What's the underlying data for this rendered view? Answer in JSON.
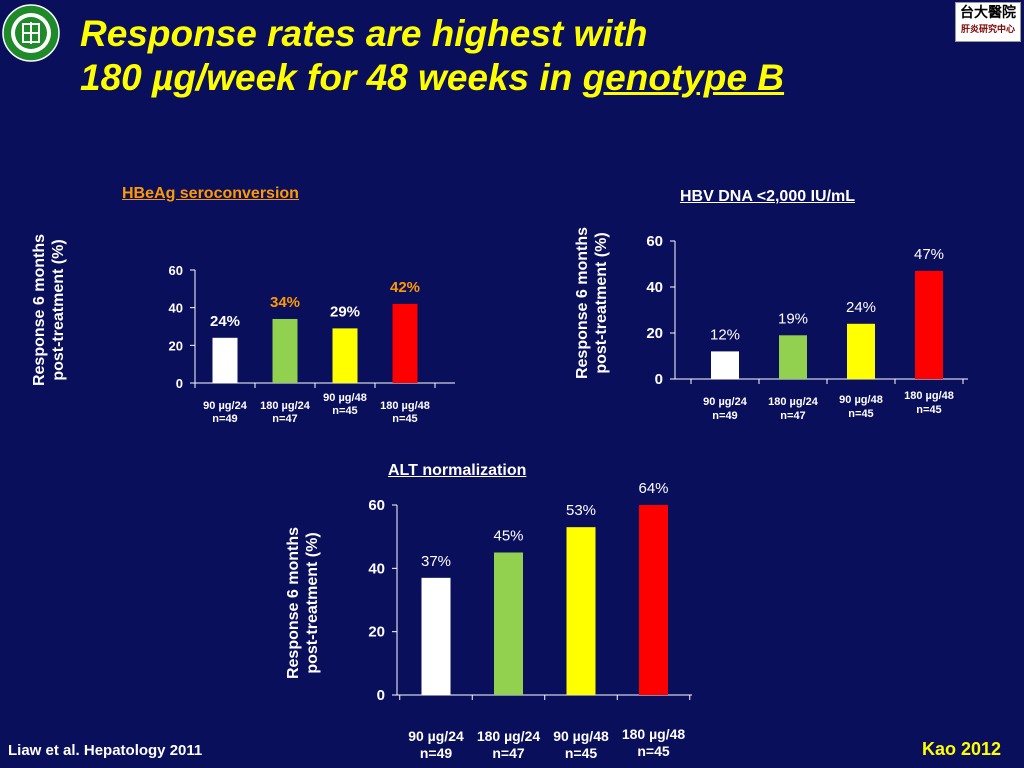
{
  "title": {
    "line1": "Response rates are highest with",
    "line2_prefix": "180 µg/week for 48 weeks in ",
    "line2_underlined": "genotype B"
  },
  "footer": {
    "citation": "Liaw et al. Hepatology 2011",
    "credit": "Kao 2012"
  },
  "logo_right": {
    "text_top": "台大醫院",
    "text_bottom": "肝炎研究中心"
  },
  "colors": {
    "background": "#0a0f5c",
    "title": "#ffff00",
    "accent_orange": "#ff9900"
  },
  "chart_data": [
    {
      "type": "bar",
      "title": "HBeAg seroconversion",
      "ylabel_line1": "Response 6 months",
      "ylabel_line2": "post-treatment  (%)",
      "categories": [
        {
          "line1": "90 µg/24",
          "line2": "n=49"
        },
        {
          "line1": "180 µg/24",
          "line2": "n=47"
        },
        {
          "line1": "90 µg/48",
          "line2": "n=45"
        },
        {
          "line1": "180 µg/48",
          "line2": "n=45"
        }
      ],
      "values": [
        24,
        34,
        29,
        42
      ],
      "data_labels": [
        "24%",
        "34%",
        "29%",
        "42%"
      ],
      "label_colors": [
        "#ffffff",
        "#ff9900",
        "#ffffff",
        "#ff9900"
      ],
      "bar_colors": [
        "#ffffff",
        "#92d050",
        "#ffff00",
        "#ff0000"
      ],
      "yticks": [
        "0",
        "20",
        "40",
        "60"
      ],
      "ylim": [
        0,
        60
      ]
    },
    {
      "type": "bar",
      "title": "HBV DNA <2,000 IU/mL",
      "ylabel_line1": "Response 6 months",
      "ylabel_line2": "post-treatment  (%)",
      "categories": [
        {
          "line1": "90 µg/24",
          "line2": "n=49"
        },
        {
          "line1": "180 µg/24",
          "line2": "n=47"
        },
        {
          "line1": "90 µg/48",
          "line2": "n=45"
        },
        {
          "line1": "180 µg/48",
          "line2": "n=45"
        }
      ],
      "values": [
        12,
        19,
        24,
        47
      ],
      "data_labels": [
        "12%",
        "19%",
        "24%",
        "47%"
      ],
      "label_colors": [
        "#ffffff",
        "#ffffff",
        "#ffffff",
        "#ffffff"
      ],
      "bar_colors": [
        "#ffffff",
        "#92d050",
        "#ffff00",
        "#ff0000"
      ],
      "yticks": [
        "0",
        "20",
        "40",
        "60"
      ],
      "ylim": [
        0,
        60
      ]
    },
    {
      "type": "bar",
      "title": "ALT normalization",
      "ylabel_line1": "Response 6 months",
      "ylabel_line2": "post-treatment  (%)",
      "categories": [
        {
          "line1": "90 µg/24",
          "line2": "n=49"
        },
        {
          "line1": "180 µg/24",
          "line2": "n=47"
        },
        {
          "line1": "90 µg/48",
          "line2": "n=45"
        },
        {
          "line1": "180 µg/48",
          "line2": "n=45"
        }
      ],
      "values": [
        37,
        45,
        53,
        64
      ],
      "data_labels": [
        "37%",
        "45%",
        "53%",
        "64%"
      ],
      "label_colors": [
        "#ffffff",
        "#ffffff",
        "#ffffff",
        "#ffffff"
      ],
      "bar_colors": [
        "#ffffff",
        "#92d050",
        "#ffff00",
        "#ff0000"
      ],
      "yticks": [
        "0",
        "20",
        "40",
        "60"
      ],
      "ylim": [
        0,
        60
      ]
    }
  ]
}
